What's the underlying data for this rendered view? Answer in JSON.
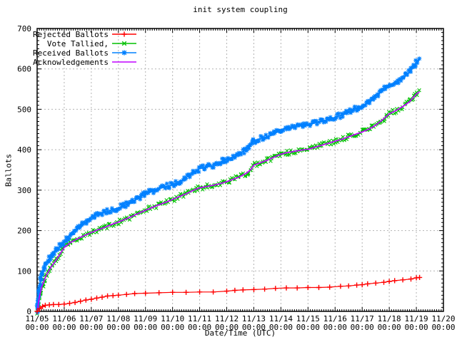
{
  "chart_data": {
    "type": "line",
    "title": "init system coupling",
    "xlabel": "Date/Time (UTC)",
    "ylabel": "Ballots",
    "x_unit": "days since 11/05 00:00",
    "xlim": [
      0,
      15
    ],
    "ylim": [
      0,
      700
    ],
    "grid": true,
    "legend_position": "top-left-inside",
    "background": "#ffffff",
    "grid_color": "#b4b4b4",
    "axis_color": "#000000",
    "y_ticks": [
      0,
      100,
      200,
      300,
      400,
      500,
      600,
      700
    ],
    "y_minor_step": 10,
    "x_minor_ticks_per_day": 12,
    "x_ticks": [
      {
        "date": "11/05",
        "time": "00:00"
      },
      {
        "date": "11/06",
        "time": "00:00"
      },
      {
        "date": "11/07",
        "time": "00:00"
      },
      {
        "date": "11/08",
        "time": "00:00"
      },
      {
        "date": "11/09",
        "time": "00:00"
      },
      {
        "date": "11/10",
        "time": "00:00"
      },
      {
        "date": "11/11",
        "time": "00:00"
      },
      {
        "date": "11/12",
        "time": "00:00"
      },
      {
        "date": "11/13",
        "time": "00:00"
      },
      {
        "date": "11/14",
        "time": "00:00"
      },
      {
        "date": "11/15",
        "time": "00:00"
      },
      {
        "date": "11/16",
        "time": "00:00"
      },
      {
        "date": "11/17",
        "time": "00:00"
      },
      {
        "date": "11/18",
        "time": "00:00"
      },
      {
        "date": "11/19",
        "time": "00:00"
      },
      {
        "date": "11/20",
        "time": "00:00"
      }
    ],
    "series": [
      {
        "name": "Rejected Ballots",
        "color": "#ff0000",
        "marker": "plus",
        "style": "line+points",
        "t": [
          0,
          0.1,
          0.2,
          0.3,
          0.45,
          0.6,
          0.8,
          1,
          1.2,
          1.4,
          1.6,
          1.8,
          2,
          2.2,
          2.4,
          2.6,
          2.8,
          3,
          3.3,
          3.6,
          4,
          4.5,
          5,
          5.5,
          6,
          6.5,
          7,
          7.3,
          7.6,
          8,
          8.4,
          8.8,
          9.2,
          9.6,
          10,
          10.4,
          10.8,
          11.2,
          11.5,
          11.8,
          12,
          12.2,
          12.5,
          12.8,
          13,
          13.2,
          13.5,
          13.8,
          14,
          14.12
        ],
        "v": [
          0,
          7,
          12,
          15,
          16,
          17,
          17,
          18,
          20,
          22,
          25,
          28,
          30,
          33,
          35,
          38,
          39,
          40,
          42,
          44,
          45,
          46,
          47,
          47,
          48,
          48,
          50,
          52,
          53,
          54,
          55,
          57,
          58,
          58,
          59,
          59,
          60,
          62,
          63,
          65,
          66,
          68,
          70,
          72,
          74,
          76,
          78,
          80,
          83,
          84
        ]
      },
      {
        "name": "Vote Tallied,",
        "color": "#00c000",
        "marker": "cross",
        "style": "band",
        "t": [
          0,
          0.08,
          0.17,
          0.33,
          0.5,
          0.75,
          1,
          1.25,
          1.5,
          1.75,
          2,
          2.25,
          2.5,
          2.75,
          3,
          3.25,
          3.5,
          3.75,
          4,
          4.25,
          4.5,
          4.75,
          5,
          5.25,
          5.5,
          5.75,
          6,
          6.25,
          6.5,
          6.75,
          7,
          7.25,
          7.5,
          7.75,
          7.9,
          8,
          8.25,
          8.5,
          8.75,
          9,
          9.25,
          9.5,
          9.75,
          10,
          10.25,
          10.5,
          10.75,
          11,
          11.25,
          11.5,
          11.75,
          12,
          12.25,
          12.5,
          12.75,
          13,
          13.25,
          13.5,
          13.75,
          14,
          14.12
        ],
        "v": [
          0,
          34,
          60,
          88,
          108,
          132,
          158,
          171,
          180,
          188,
          195,
          202,
          208,
          215,
          221,
          228,
          235,
          243,
          250,
          257,
          264,
          270,
          277,
          284,
          291,
          299,
          306,
          309,
          312,
          316,
          321,
          327,
          334,
          343,
          352,
          362,
          368,
          374,
          382,
          389,
          393,
          396,
          399,
          401,
          406,
          411,
          416,
          421,
          426,
          432,
          438,
          444,
          451,
          461,
          474,
          489,
          497,
          507,
          519,
          538,
          544
        ]
      },
      {
        "name": "Received Ballots",
        "color": "#0080ff",
        "marker": "star",
        "style": "band+line",
        "t": [
          0,
          0.08,
          0.17,
          0.33,
          0.5,
          0.75,
          1,
          1.25,
          1.5,
          1.75,
          2,
          2.25,
          2.5,
          2.75,
          3,
          3.25,
          3.5,
          3.75,
          4,
          4.25,
          4.5,
          4.75,
          5,
          5.25,
          5.5,
          5.75,
          6,
          6.25,
          6.5,
          6.75,
          7,
          7.25,
          7.5,
          7.75,
          7.9,
          8,
          8.25,
          8.5,
          8.75,
          9,
          9.25,
          9.5,
          9.75,
          10,
          10.25,
          10.5,
          10.75,
          11,
          11.25,
          11.5,
          11.75,
          12,
          12.25,
          12.5,
          12.75,
          13,
          13.25,
          13.5,
          13.75,
          14,
          14.12
        ],
        "v": [
          0,
          55,
          92,
          118,
          136,
          156,
          172,
          193,
          203,
          219,
          233,
          241,
          246,
          251,
          256,
          263,
          271,
          281,
          291,
          297,
          304,
          309,
          313,
          321,
          331,
          343,
          353,
          358,
          361,
          369,
          377,
          381,
          392,
          401,
          412,
          421,
          428,
          431,
          440,
          450,
          454,
          457,
          460,
          462,
          466,
          470,
          475,
          480,
          486,
          493,
          501,
          509,
          516,
          531,
          546,
          559,
          567,
          578,
          593,
          615,
          623
        ]
      },
      {
        "name": "Acknowledgements",
        "color": "#c000ff",
        "marker": "none",
        "style": "line",
        "t": [
          0,
          0.08,
          0.17,
          0.33,
          0.5,
          0.75,
          1,
          1.25,
          1.5,
          1.75,
          2,
          2.25,
          2.5,
          2.75,
          3,
          3.25,
          3.5,
          3.75,
          4,
          4.25,
          4.5,
          4.75,
          5,
          5.25,
          5.5,
          5.75,
          6,
          6.25,
          6.5,
          6.75,
          7,
          7.25,
          7.5,
          7.75,
          7.9,
          8,
          8.25,
          8.5,
          8.75,
          9,
          9.25,
          9.5,
          9.75,
          10,
          10.25,
          10.5,
          10.75,
          11,
          11.25,
          11.5,
          11.75,
          12,
          12.25,
          12.5,
          12.75,
          13,
          13.25,
          13.5,
          13.75,
          14,
          14.12
        ],
        "v": [
          0,
          34,
          60,
          88,
          108,
          132,
          158,
          171,
          180,
          188,
          195,
          202,
          208,
          215,
          221,
          228,
          235,
          243,
          250,
          257,
          264,
          270,
          277,
          284,
          291,
          299,
          306,
          309,
          312,
          316,
          321,
          327,
          334,
          343,
          352,
          362,
          368,
          374,
          382,
          389,
          393,
          396,
          399,
          401,
          406,
          411,
          416,
          421,
          426,
          432,
          438,
          444,
          451,
          461,
          474,
          489,
          497,
          507,
          519,
          538,
          544
        ]
      }
    ]
  }
}
